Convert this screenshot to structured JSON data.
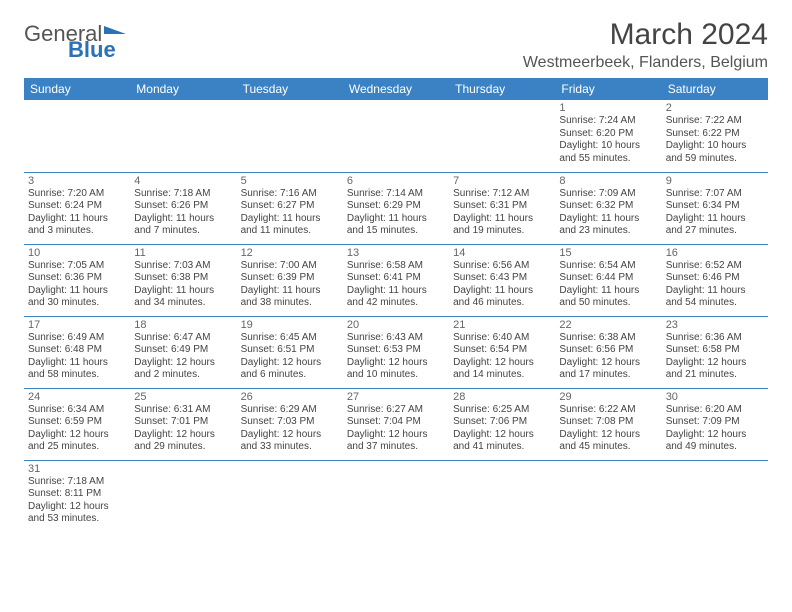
{
  "logo": {
    "line1": "General",
    "line2": "Blue"
  },
  "title": "March 2024",
  "location": "Westmeerbeek, Flanders, Belgium",
  "colors": {
    "header_bg": "#3b82c4",
    "header_text": "#ffffff",
    "border": "#3b82c4",
    "body_text": "#444444",
    "logo_accent": "#2a72b5"
  },
  "weekdays": [
    "Sunday",
    "Monday",
    "Tuesday",
    "Wednesday",
    "Thursday",
    "Friday",
    "Saturday"
  ],
  "weeks": [
    [
      null,
      null,
      null,
      null,
      null,
      {
        "d": "1",
        "sr": "Sunrise: 7:24 AM",
        "ss": "Sunset: 6:20 PM",
        "dl1": "Daylight: 10 hours",
        "dl2": "and 55 minutes."
      },
      {
        "d": "2",
        "sr": "Sunrise: 7:22 AM",
        "ss": "Sunset: 6:22 PM",
        "dl1": "Daylight: 10 hours",
        "dl2": "and 59 minutes."
      }
    ],
    [
      {
        "d": "3",
        "sr": "Sunrise: 7:20 AM",
        "ss": "Sunset: 6:24 PM",
        "dl1": "Daylight: 11 hours",
        "dl2": "and 3 minutes."
      },
      {
        "d": "4",
        "sr": "Sunrise: 7:18 AM",
        "ss": "Sunset: 6:26 PM",
        "dl1": "Daylight: 11 hours",
        "dl2": "and 7 minutes."
      },
      {
        "d": "5",
        "sr": "Sunrise: 7:16 AM",
        "ss": "Sunset: 6:27 PM",
        "dl1": "Daylight: 11 hours",
        "dl2": "and 11 minutes."
      },
      {
        "d": "6",
        "sr": "Sunrise: 7:14 AM",
        "ss": "Sunset: 6:29 PM",
        "dl1": "Daylight: 11 hours",
        "dl2": "and 15 minutes."
      },
      {
        "d": "7",
        "sr": "Sunrise: 7:12 AM",
        "ss": "Sunset: 6:31 PM",
        "dl1": "Daylight: 11 hours",
        "dl2": "and 19 minutes."
      },
      {
        "d": "8",
        "sr": "Sunrise: 7:09 AM",
        "ss": "Sunset: 6:32 PM",
        "dl1": "Daylight: 11 hours",
        "dl2": "and 23 minutes."
      },
      {
        "d": "9",
        "sr": "Sunrise: 7:07 AM",
        "ss": "Sunset: 6:34 PM",
        "dl1": "Daylight: 11 hours",
        "dl2": "and 27 minutes."
      }
    ],
    [
      {
        "d": "10",
        "sr": "Sunrise: 7:05 AM",
        "ss": "Sunset: 6:36 PM",
        "dl1": "Daylight: 11 hours",
        "dl2": "and 30 minutes."
      },
      {
        "d": "11",
        "sr": "Sunrise: 7:03 AM",
        "ss": "Sunset: 6:38 PM",
        "dl1": "Daylight: 11 hours",
        "dl2": "and 34 minutes."
      },
      {
        "d": "12",
        "sr": "Sunrise: 7:00 AM",
        "ss": "Sunset: 6:39 PM",
        "dl1": "Daylight: 11 hours",
        "dl2": "and 38 minutes."
      },
      {
        "d": "13",
        "sr": "Sunrise: 6:58 AM",
        "ss": "Sunset: 6:41 PM",
        "dl1": "Daylight: 11 hours",
        "dl2": "and 42 minutes."
      },
      {
        "d": "14",
        "sr": "Sunrise: 6:56 AM",
        "ss": "Sunset: 6:43 PM",
        "dl1": "Daylight: 11 hours",
        "dl2": "and 46 minutes."
      },
      {
        "d": "15",
        "sr": "Sunrise: 6:54 AM",
        "ss": "Sunset: 6:44 PM",
        "dl1": "Daylight: 11 hours",
        "dl2": "and 50 minutes."
      },
      {
        "d": "16",
        "sr": "Sunrise: 6:52 AM",
        "ss": "Sunset: 6:46 PM",
        "dl1": "Daylight: 11 hours",
        "dl2": "and 54 minutes."
      }
    ],
    [
      {
        "d": "17",
        "sr": "Sunrise: 6:49 AM",
        "ss": "Sunset: 6:48 PM",
        "dl1": "Daylight: 11 hours",
        "dl2": "and 58 minutes."
      },
      {
        "d": "18",
        "sr": "Sunrise: 6:47 AM",
        "ss": "Sunset: 6:49 PM",
        "dl1": "Daylight: 12 hours",
        "dl2": "and 2 minutes."
      },
      {
        "d": "19",
        "sr": "Sunrise: 6:45 AM",
        "ss": "Sunset: 6:51 PM",
        "dl1": "Daylight: 12 hours",
        "dl2": "and 6 minutes."
      },
      {
        "d": "20",
        "sr": "Sunrise: 6:43 AM",
        "ss": "Sunset: 6:53 PM",
        "dl1": "Daylight: 12 hours",
        "dl2": "and 10 minutes."
      },
      {
        "d": "21",
        "sr": "Sunrise: 6:40 AM",
        "ss": "Sunset: 6:54 PM",
        "dl1": "Daylight: 12 hours",
        "dl2": "and 14 minutes."
      },
      {
        "d": "22",
        "sr": "Sunrise: 6:38 AM",
        "ss": "Sunset: 6:56 PM",
        "dl1": "Daylight: 12 hours",
        "dl2": "and 17 minutes."
      },
      {
        "d": "23",
        "sr": "Sunrise: 6:36 AM",
        "ss": "Sunset: 6:58 PM",
        "dl1": "Daylight: 12 hours",
        "dl2": "and 21 minutes."
      }
    ],
    [
      {
        "d": "24",
        "sr": "Sunrise: 6:34 AM",
        "ss": "Sunset: 6:59 PM",
        "dl1": "Daylight: 12 hours",
        "dl2": "and 25 minutes."
      },
      {
        "d": "25",
        "sr": "Sunrise: 6:31 AM",
        "ss": "Sunset: 7:01 PM",
        "dl1": "Daylight: 12 hours",
        "dl2": "and 29 minutes."
      },
      {
        "d": "26",
        "sr": "Sunrise: 6:29 AM",
        "ss": "Sunset: 7:03 PM",
        "dl1": "Daylight: 12 hours",
        "dl2": "and 33 minutes."
      },
      {
        "d": "27",
        "sr": "Sunrise: 6:27 AM",
        "ss": "Sunset: 7:04 PM",
        "dl1": "Daylight: 12 hours",
        "dl2": "and 37 minutes."
      },
      {
        "d": "28",
        "sr": "Sunrise: 6:25 AM",
        "ss": "Sunset: 7:06 PM",
        "dl1": "Daylight: 12 hours",
        "dl2": "and 41 minutes."
      },
      {
        "d": "29",
        "sr": "Sunrise: 6:22 AM",
        "ss": "Sunset: 7:08 PM",
        "dl1": "Daylight: 12 hours",
        "dl2": "and 45 minutes."
      },
      {
        "d": "30",
        "sr": "Sunrise: 6:20 AM",
        "ss": "Sunset: 7:09 PM",
        "dl1": "Daylight: 12 hours",
        "dl2": "and 49 minutes."
      }
    ],
    [
      {
        "d": "31",
        "sr": "Sunrise: 7:18 AM",
        "ss": "Sunset: 8:11 PM",
        "dl1": "Daylight: 12 hours",
        "dl2": "and 53 minutes."
      },
      null,
      null,
      null,
      null,
      null,
      null
    ]
  ]
}
